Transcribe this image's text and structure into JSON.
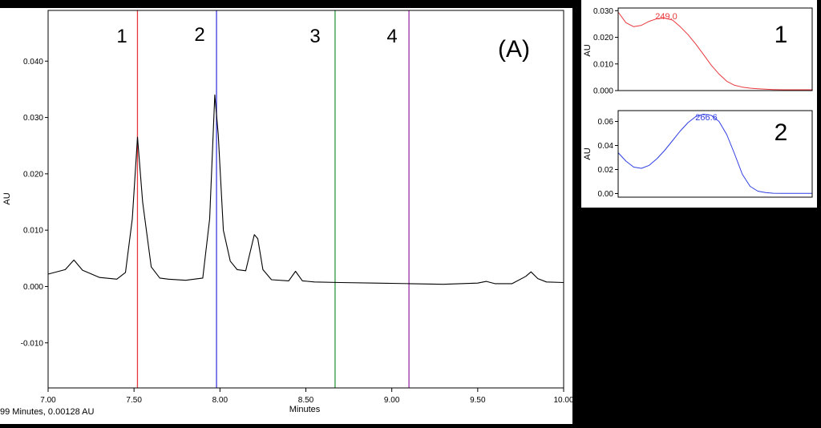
{
  "chart_data": [
    {
      "type": "line",
      "panel_label": "(A)",
      "xlabel": "Minutes",
      "ylabel": "AU",
      "xlim": [
        7.0,
        10.0
      ],
      "ylim": [
        -0.018,
        0.049
      ],
      "x_ticks": [
        "7.00",
        "7.50",
        "8.00",
        "8.50",
        "9.00",
        "9.50",
        "10.00"
      ],
      "x_tick_values": [
        7.0,
        7.5,
        8.0,
        8.5,
        9.0,
        9.5,
        10.0
      ],
      "y_ticks": [
        "-0.010",
        "0.000",
        "0.010",
        "0.020",
        "0.030",
        "0.040"
      ],
      "y_tick_values": [
        -0.01,
        0.0,
        0.01,
        0.02,
        0.03,
        0.04
      ],
      "trace_color": "#000000",
      "series": [
        {
          "x": [
            7.0,
            7.1,
            7.15,
            7.2,
            7.3,
            7.4,
            7.45,
            7.49,
            7.52,
            7.55,
            7.6,
            7.65,
            7.7,
            7.8,
            7.9,
            7.94,
            7.97,
            7.99,
            8.02,
            8.06,
            8.1,
            8.15,
            8.2,
            8.22,
            8.25,
            8.3,
            8.4,
            8.44,
            8.48,
            8.55,
            8.7,
            8.9,
            9.1,
            9.3,
            9.5,
            9.55,
            9.6,
            9.7,
            9.78,
            9.81,
            9.85,
            9.9,
            10.0
          ],
          "y": [
            0.0022,
            0.003,
            0.0047,
            0.0029,
            0.0016,
            0.0013,
            0.0025,
            0.012,
            0.0265,
            0.015,
            0.0035,
            0.0015,
            0.0013,
            0.0011,
            0.0015,
            0.012,
            0.034,
            0.027,
            0.01,
            0.0045,
            0.003,
            0.0028,
            0.0092,
            0.0085,
            0.003,
            0.0012,
            0.001,
            0.0027,
            0.001,
            0.0008,
            0.0007,
            0.0006,
            0.0005,
            0.0004,
            0.0006,
            0.0009,
            0.0005,
            0.0005,
            0.0018,
            0.0026,
            0.0014,
            0.0008,
            0.0007
          ]
        }
      ],
      "markers": [
        {
          "label": "1",
          "x": 7.52,
          "color": "#e8383d"
        },
        {
          "label": "2",
          "x": 7.98,
          "color": "#3a3adf"
        },
        {
          "label": "3",
          "x": 8.67,
          "color": "#2e9a3e"
        },
        {
          "label": "4",
          "x": 9.1,
          "color": "#9b2fa8"
        }
      ],
      "status_text": "99 Minutes, 0.00128 AU"
    },
    {
      "type": "line",
      "panel_label": "1",
      "ylabel": "AU",
      "ylim": [
        0.0,
        0.031
      ],
      "y_ticks": [
        "0.000",
        "0.010",
        "0.020",
        "0.030"
      ],
      "y_tick_values": [
        0.0,
        0.01,
        0.02,
        0.03
      ],
      "xlim": [
        0,
        100
      ],
      "peak_label": "249.0",
      "line_color": "#e8383d",
      "series": [
        {
          "x": [
            0,
            4,
            8,
            12,
            16,
            20,
            24,
            28,
            32,
            36,
            40,
            44,
            48,
            52,
            56,
            60,
            64,
            68,
            72,
            76,
            80,
            85,
            90,
            95,
            100
          ],
          "y": [
            0.0295,
            0.0255,
            0.024,
            0.0245,
            0.026,
            0.027,
            0.0272,
            0.0265,
            0.024,
            0.021,
            0.0175,
            0.0135,
            0.0095,
            0.0062,
            0.0035,
            0.002,
            0.0013,
            0.0009,
            0.0007,
            0.0005,
            0.0004,
            0.0003,
            0.0003,
            0.0003,
            0.0003
          ]
        }
      ]
    },
    {
      "type": "line",
      "panel_label": "2",
      "ylabel": "AU",
      "ylim": [
        -0.003,
        0.069
      ],
      "y_ticks": [
        "0.00",
        "0.02",
        "0.04",
        "0.06"
      ],
      "y_tick_values": [
        0.0,
        0.02,
        0.04,
        0.06
      ],
      "xlim": [
        0,
        100
      ],
      "peak_label": "266.6",
      "line_color": "#2f3ee0",
      "series": [
        {
          "x": [
            0,
            4,
            8,
            12,
            16,
            20,
            24,
            28,
            32,
            36,
            40,
            44,
            48,
            52,
            56,
            60,
            64,
            68,
            72,
            76,
            80,
            85,
            90,
            95,
            100
          ],
          "y": [
            0.034,
            0.027,
            0.022,
            0.021,
            0.0235,
            0.029,
            0.036,
            0.044,
            0.052,
            0.059,
            0.064,
            0.066,
            0.065,
            0.06,
            0.049,
            0.033,
            0.016,
            0.006,
            0.002,
            0.0008,
            0.0003,
            0.0002,
            0.0002,
            0.0002,
            0.0002
          ]
        }
      ]
    }
  ]
}
